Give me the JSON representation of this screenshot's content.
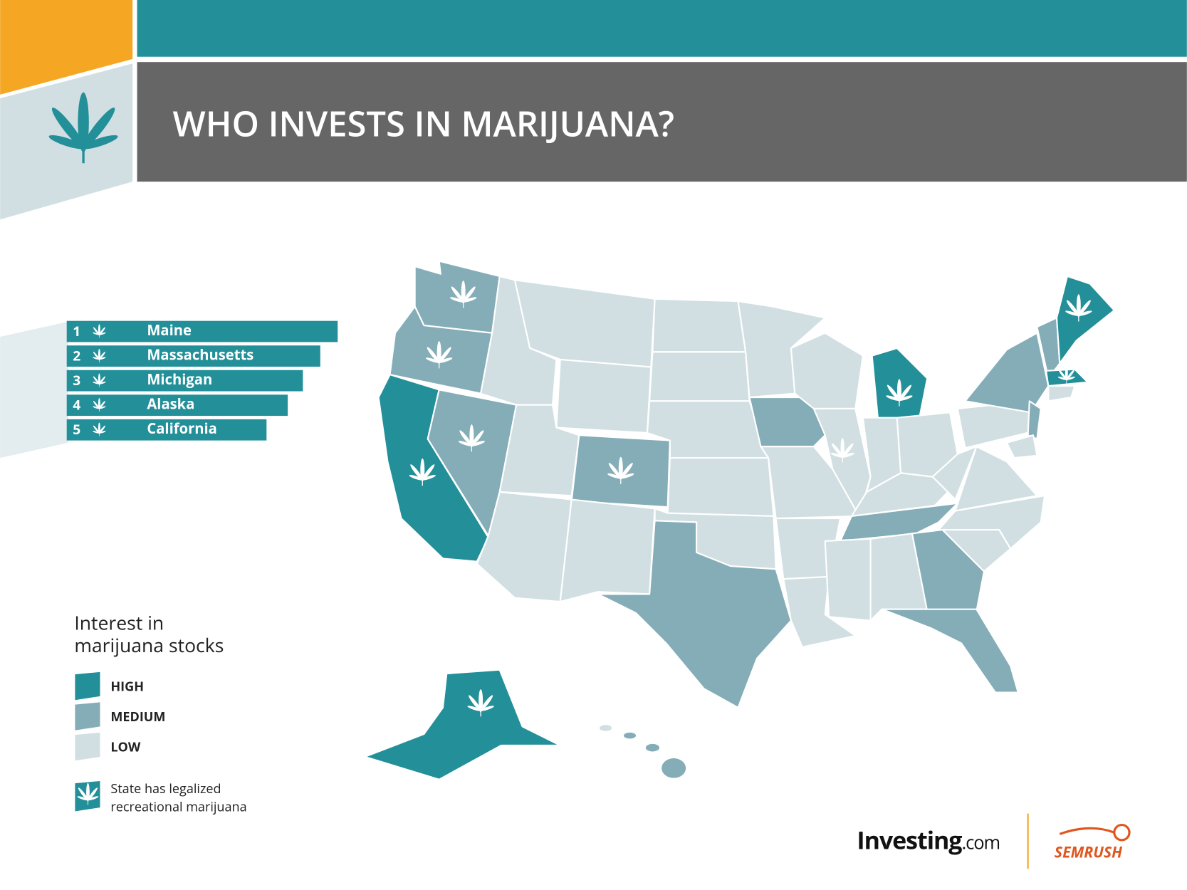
{
  "header": {
    "title": "WHO INVESTS IN MARIJUANA?"
  },
  "ranking": [
    {
      "rank": 1,
      "state": "Maine"
    },
    {
      "rank": 2,
      "state": "Massachusetts"
    },
    {
      "rank": 3,
      "state": "Michigan"
    },
    {
      "rank": 4,
      "state": "Alaska"
    },
    {
      "rank": 5,
      "state": "California"
    }
  ],
  "legend": {
    "title_lines": [
      "Interest in",
      "marijuana stocks"
    ],
    "levels": [
      "HIGH",
      "MEDIUM",
      "LOW"
    ],
    "note_lines": [
      "State has legalized",
      "recreational marijuana"
    ]
  },
  "footer": {
    "investing": "Investing",
    "investing_suffix": ".com",
    "semrush": "SEMRUSH"
  }
}
